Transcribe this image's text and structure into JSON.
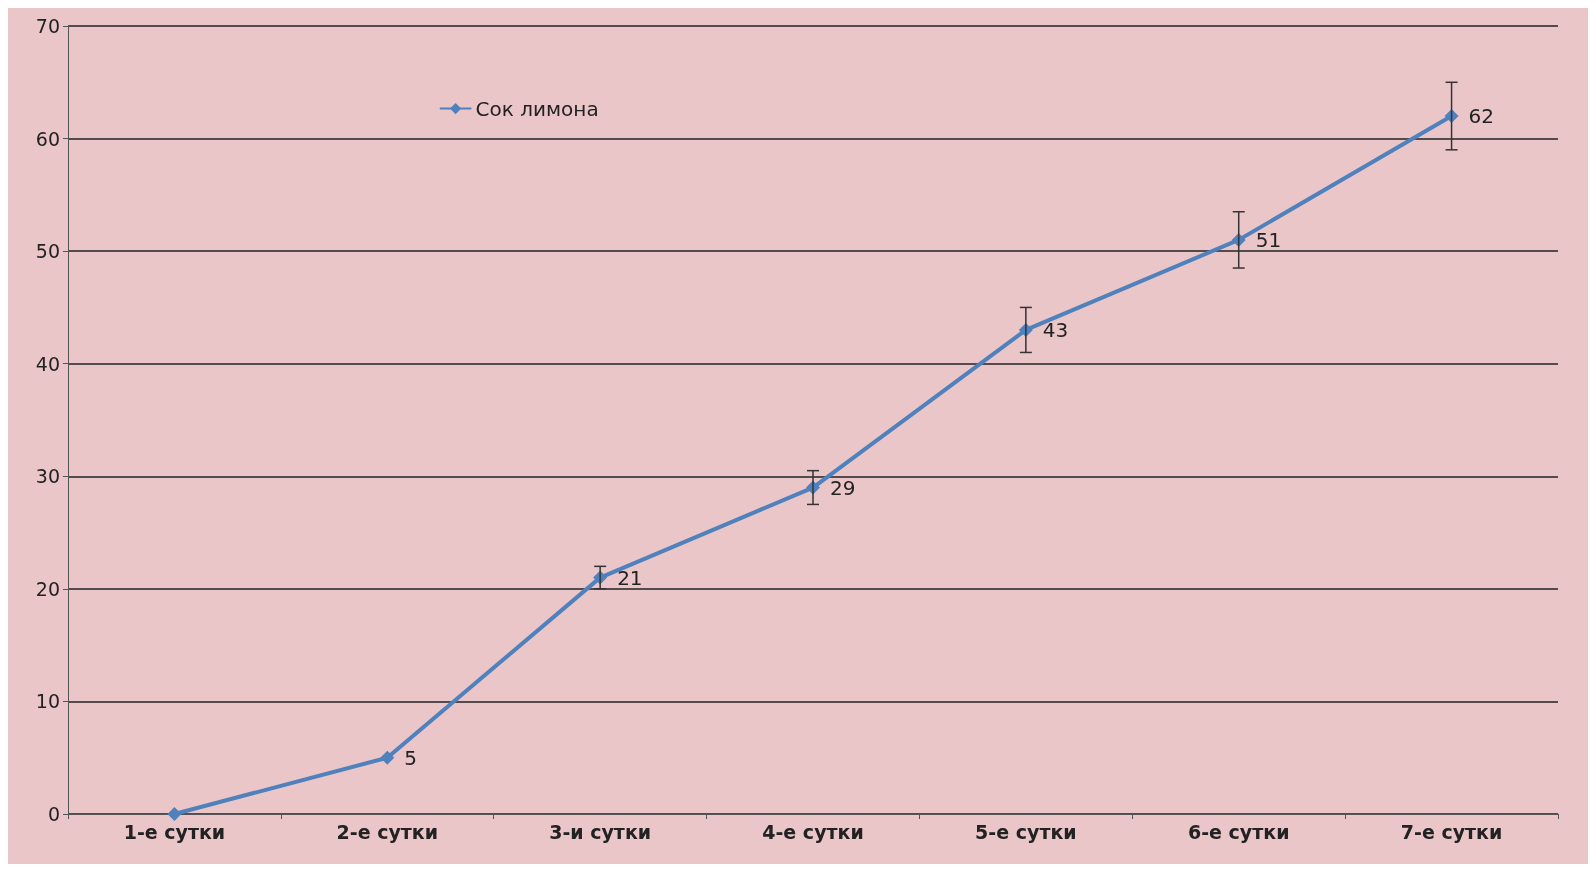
{
  "chart_data": {
    "type": "line",
    "categories": [
      "1-е сутки",
      "2-е сутки",
      "3-и сутки",
      "4-е сутки",
      "5-е сутки",
      "6-е сутки",
      "7-е сутки"
    ],
    "series": [
      {
        "name": "Сок лимона",
        "color": "#4f81bd",
        "values": [
          0,
          5,
          21,
          29,
          43,
          51,
          62
        ],
        "errors": [
          null,
          null,
          1,
          1.5,
          2,
          2.5,
          3
        ],
        "value_labels": [
          null,
          "5",
          "21",
          "29",
          "43",
          "51",
          "62"
        ]
      }
    ],
    "ylim": [
      0,
      70
    ],
    "yticks": [
      0,
      10,
      20,
      30,
      40,
      50,
      60,
      70
    ],
    "grid": "y",
    "legend": "top left",
    "marker": "diamond",
    "line_style": "solid"
  }
}
